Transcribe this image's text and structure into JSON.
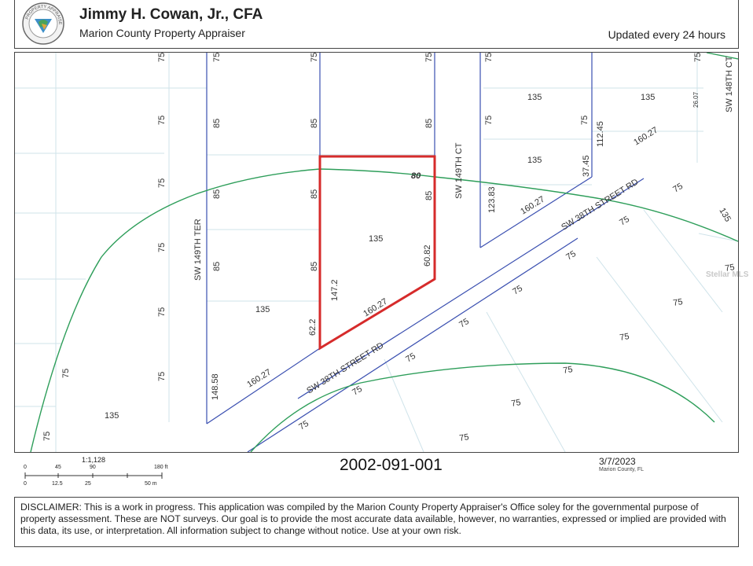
{
  "header": {
    "title": "Jimmy H. Cowan, Jr., CFA",
    "subtitle": "Marion County Property Appraiser",
    "updated": "Updated every 24 hours",
    "seal_text": "PROPERTY APPRAISER",
    "seal_sub": "MARION COUNTY FL"
  },
  "map": {
    "parcel_color": "#d62b2b",
    "line_color": "#3a4fb0",
    "contour_color": "#2e9e5a",
    "street_labels": {
      "sw_149th_ter": "SW 149TH TER",
      "sw_149th_ct": "SW 149TH CT",
      "sw_148th_ct": "SW 148TH CT",
      "sw_38th_street_rd_upper": "SW 38TH STREET RD",
      "sw_38th_street_rd_lower": "SW 38TH STREET RD"
    },
    "labels": {
      "a75": "75",
      "a85": "85",
      "a135": "135",
      "a80": "80",
      "a160_27": "160.27",
      "a147_2": "147.2",
      "a62_2": "62.2",
      "a60_82": "60.82",
      "a148_58": "148.58",
      "a123_83": "123.83",
      "a112_45": "112.45",
      "a37_45": "37.45",
      "a26_07": "26.07"
    },
    "watermark": "Stellar MLS"
  },
  "scale": {
    "ratio": "1:1,128",
    "ft_ticks": [
      "0",
      "45",
      "90",
      "180 ft"
    ],
    "m_ticks": [
      "0",
      "12.5",
      "25",
      "50 m"
    ]
  },
  "footer": {
    "parcel_id": "2002-091-001",
    "date": "3/7/2023",
    "county": "Marion County, FL"
  },
  "disclaimer": {
    "text": "DISCLAIMER: This is a work in progress. This application was compiled by the Marion County Property Appraiser's Office soley for the governmental purpose of property assessment. These are NOT surveys. Our goal is to provide the most accurate data available, however, no warranties, expressed or implied are provided with this data, its use, or interpretation. All information subject to change without notice. Use at your own risk."
  }
}
